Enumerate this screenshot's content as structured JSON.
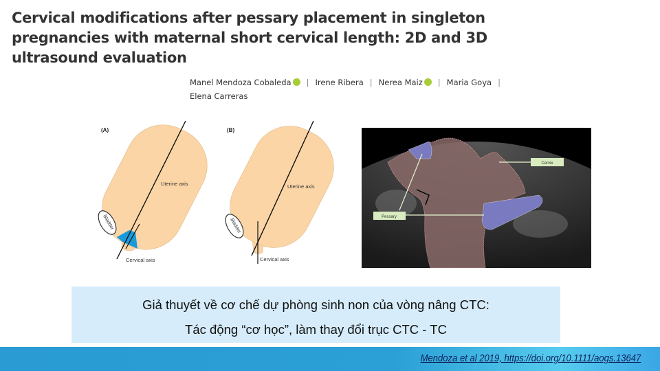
{
  "title": "Cervical modifications after pessary placement in singleton pregnancies with maternal short cervical length: 2D and 3D ultrasound evaluation",
  "authors": [
    "Manel Mendoza Cobaleda",
    "Irene Ribera",
    "Nerea Maiz",
    "Maria Goya",
    "Elena Carreras"
  ],
  "separator": "|",
  "figure": {
    "panel_a": {
      "label": "(A)",
      "uterine_axis": "Uterine axis",
      "cervical_axis": "Cervical axis",
      "bladder": "Bladder"
    },
    "panel_b": {
      "label": "(B)",
      "uterine_axis": "Uterine axis",
      "cervical_axis": "Cervical axis",
      "bladder": "Bladder"
    },
    "ultrasound": {
      "cervix_label": "Cervix",
      "pessary_label": "Pessary"
    }
  },
  "hypothesis": {
    "line1": "Giả thuyết về cơ chế dự phòng sinh non của vòng nâng CTC:",
    "line2": "Tác động “cơ học”, làm thay đổi trục CTC - TC"
  },
  "citation": "Mendoza et al 2019, https://doi.org/10.1111/aogs.13647",
  "colors": {
    "uterus": "#fbd5a5",
    "pessary": "#1a9ad9",
    "box": "#d6ecfa",
    "footer": "#2a9fd6"
  }
}
